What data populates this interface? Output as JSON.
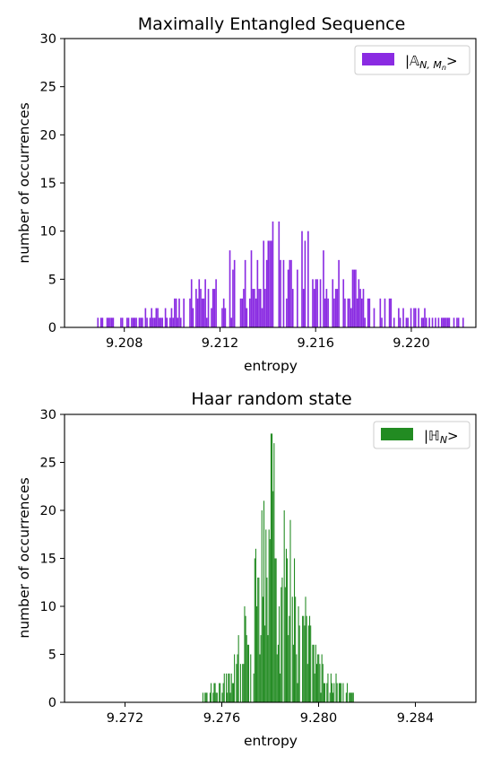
{
  "chart_data": [
    {
      "type": "bar",
      "title": "Maximally Entangled Sequence",
      "xlabel": "entropy",
      "ylabel": "number of occurrences",
      "xlim": [
        9.2055,
        9.2227
      ],
      "ylim": [
        0,
        30
      ],
      "xticks": [
        "9.208",
        "9.212",
        "9.216",
        "9.220"
      ],
      "xtick_values": [
        9.208,
        9.212,
        9.216,
        9.22
      ],
      "yticks": [
        "0",
        "5",
        "10",
        "15",
        "20",
        "25",
        "30"
      ],
      "ytick_values": [
        0,
        5,
        10,
        15,
        20,
        25,
        30
      ],
      "legend_position": "top-right",
      "grid": false,
      "color": "#8a2be2",
      "series": [
        {
          "name": "|𝔸N, Mn>",
          "distribution": "histogram",
          "center": 9.2145,
          "range": [
            9.2068,
            9.2222
          ],
          "peak_count": 11,
          "x": [
            9.2068,
            9.208,
            9.209,
            9.2097,
            9.2105,
            9.2113,
            9.212,
            9.2125,
            9.213,
            9.2135,
            9.214,
            9.2143,
            9.2146,
            9.215,
            9.2155,
            9.216,
            9.2165,
            9.217,
            9.2175,
            9.218,
            9.2186,
            9.2192,
            9.22,
            9.221,
            9.2222
          ],
          "values": [
            1,
            1,
            2,
            2,
            4,
            5,
            7,
            9,
            8,
            8,
            9,
            11,
            10,
            9,
            10,
            10,
            8,
            7,
            6,
            5,
            3,
            3,
            2,
            1,
            1
          ]
        }
      ]
    },
    {
      "type": "bar",
      "title": "Haar random state",
      "xlabel": "entropy",
      "ylabel": "number of occurrences",
      "xlim": [
        9.2695,
        9.2865
      ],
      "ylim": [
        0,
        30
      ],
      "xticks": [
        "9.272",
        "9.276",
        "9.280",
        "9.284"
      ],
      "xtick_values": [
        9.272,
        9.276,
        9.28,
        9.284
      ],
      "yticks": [
        "0",
        "5",
        "10",
        "15",
        "20",
        "25",
        "30"
      ],
      "ytick_values": [
        0,
        5,
        10,
        15,
        20,
        25,
        30
      ],
      "legend_position": "top-right",
      "grid": false,
      "color": "#228b22",
      "series": [
        {
          "name": "|ℍN>",
          "distribution": "histogram",
          "center": 9.2781,
          "range": [
            9.2752,
            9.2815
          ],
          "peak_count": 28,
          "x": [
            9.2752,
            9.2758,
            9.2764,
            9.2768,
            9.2772,
            9.2775,
            9.2778,
            9.278,
            9.2782,
            9.2784,
            9.2786,
            9.2789,
            9.2792,
            9.2796,
            9.28,
            9.2805,
            9.281,
            9.2815
          ],
          "values": [
            1,
            2,
            4,
            8,
            12,
            16,
            21,
            28,
            25,
            19,
            24,
            17,
            13,
            9,
            5,
            3,
            2,
            1
          ]
        }
      ]
    }
  ]
}
